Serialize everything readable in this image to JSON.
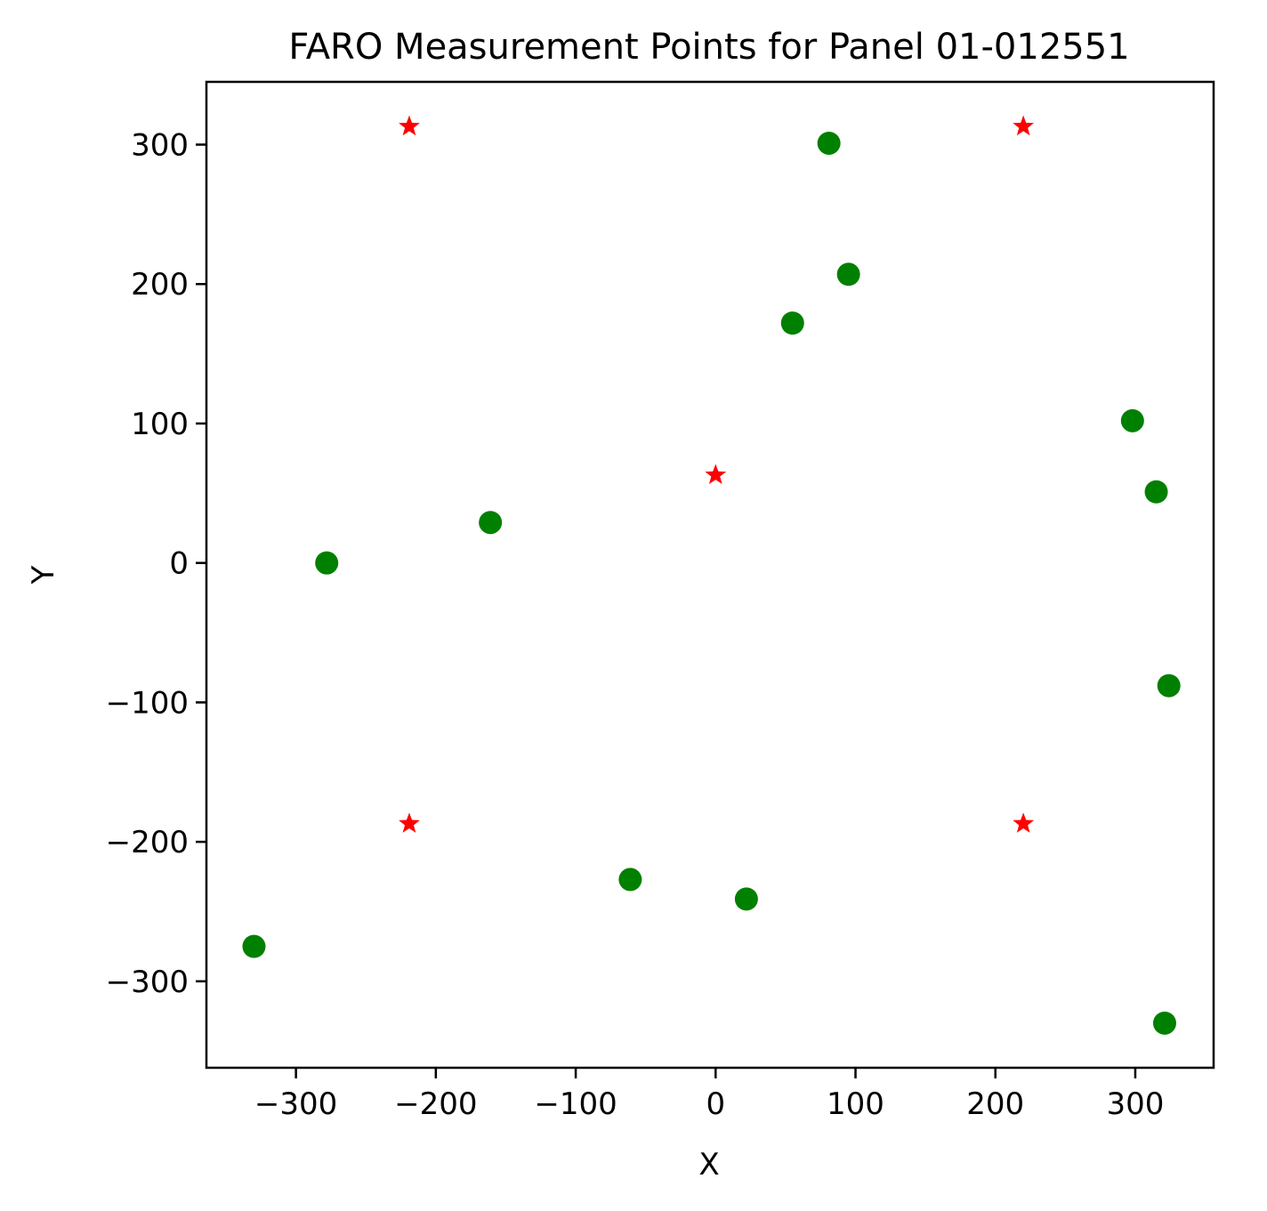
{
  "chart_data": {
    "type": "scatter",
    "title": "FARO Measurement Points for Panel 01-012551",
    "xlabel": "X",
    "ylabel": "Y",
    "xlim": [
      -364,
      356
    ],
    "ylim": [
      -362,
      345
    ],
    "xticks": [
      -300,
      -200,
      -100,
      0,
      100,
      200,
      300
    ],
    "yticks": [
      -300,
      -200,
      -100,
      0,
      100,
      200,
      300
    ],
    "xtick_labels": [
      "−300",
      "−200",
      "−100",
      "0",
      "100",
      "200",
      "300"
    ],
    "ytick_labels": [
      "−300",
      "−200",
      "−100",
      "0",
      "100",
      "200",
      "300"
    ],
    "grid": false,
    "series": [
      {
        "marker": "circle",
        "color": "#008000",
        "points": [
          {
            "x": 81,
            "y": 301
          },
          {
            "x": 95,
            "y": 207
          },
          {
            "x": 55,
            "y": 172
          },
          {
            "x": 298,
            "y": 102
          },
          {
            "x": 315,
            "y": 51
          },
          {
            "x": -161,
            "y": 29
          },
          {
            "x": -278,
            "y": 0
          },
          {
            "x": 324,
            "y": -88
          },
          {
            "x": -61,
            "y": -227
          },
          {
            "x": 22,
            "y": -241
          },
          {
            "x": -330,
            "y": -275
          },
          {
            "x": 321,
            "y": -330
          }
        ]
      },
      {
        "marker": "star",
        "color": "#ff0000",
        "points": [
          {
            "x": -219,
            "y": 313
          },
          {
            "x": 220,
            "y": 313
          },
          {
            "x": 0,
            "y": 63
          },
          {
            "x": -219,
            "y": -187
          },
          {
            "x": 220,
            "y": -187
          }
        ]
      }
    ]
  }
}
